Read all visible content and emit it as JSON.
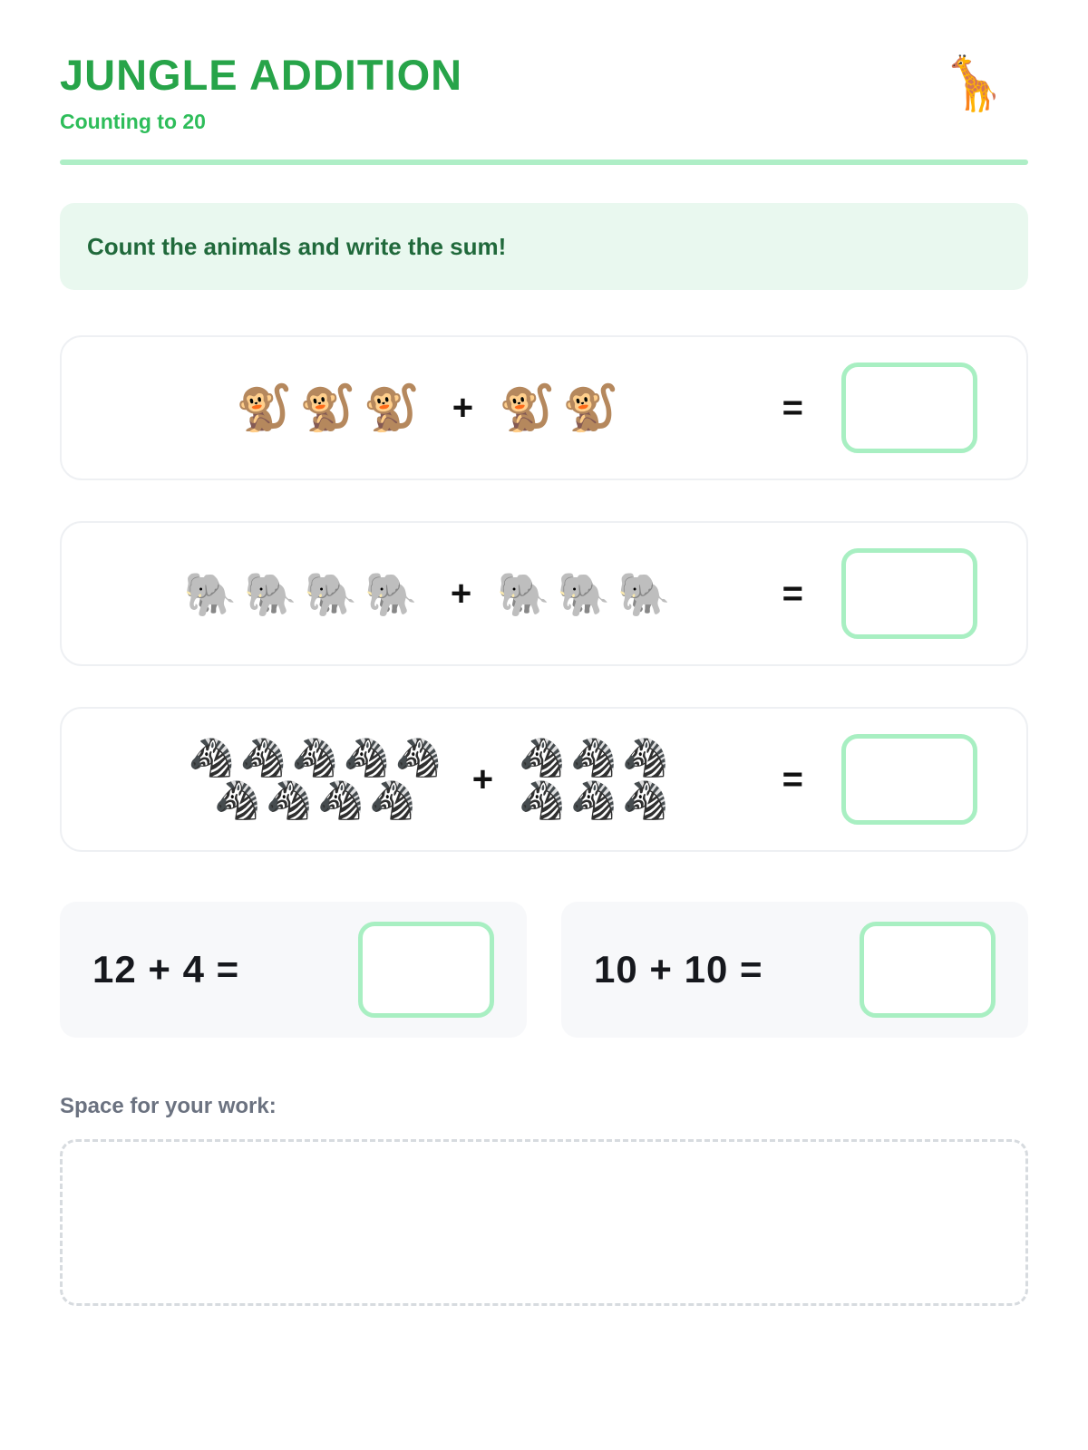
{
  "header": {
    "title": "JUNGLE ADDITION",
    "subtitle": "Counting to 20",
    "giraffe_emoji": "🦒"
  },
  "instruction": {
    "text": "Count the animals and write the sum!"
  },
  "problems": [
    {
      "animal": "monkey",
      "emoji": "🐒",
      "left_count": 3,
      "right_count": 2,
      "left_per_row": 3,
      "right_per_row": 2,
      "plus_sign": "+",
      "equals_sign": "="
    },
    {
      "animal": "elephant",
      "emoji": "🐘",
      "left_count": 4,
      "right_count": 3,
      "left_per_row": 4,
      "right_per_row": 3,
      "plus_sign": "+",
      "equals_sign": "="
    },
    {
      "animal": "zebra",
      "emoji": "🦓",
      "left_count": 9,
      "right_count": 6,
      "left_per_row": 5,
      "right_per_row": 3,
      "plus_sign": "+",
      "equals_sign": "="
    }
  ],
  "number_problems": [
    {
      "expression": "12 + 4 ="
    },
    {
      "expression": "10 + 10 ="
    }
  ],
  "work_area": {
    "label": "Space for your work:"
  },
  "colors": {
    "title_green": "#27a449",
    "subtitle_green": "#2ebd5a",
    "divider_green": "#aeeec6",
    "instruction_bg": "#e9f8ef",
    "instruction_text": "#20693b",
    "answer_box_border": "#a8efc2",
    "card_border": "#eef0f3",
    "numeric_card_bg": "#f7f8fa",
    "work_label": "#6b7280",
    "dashed_border": "#d7dbdf"
  }
}
